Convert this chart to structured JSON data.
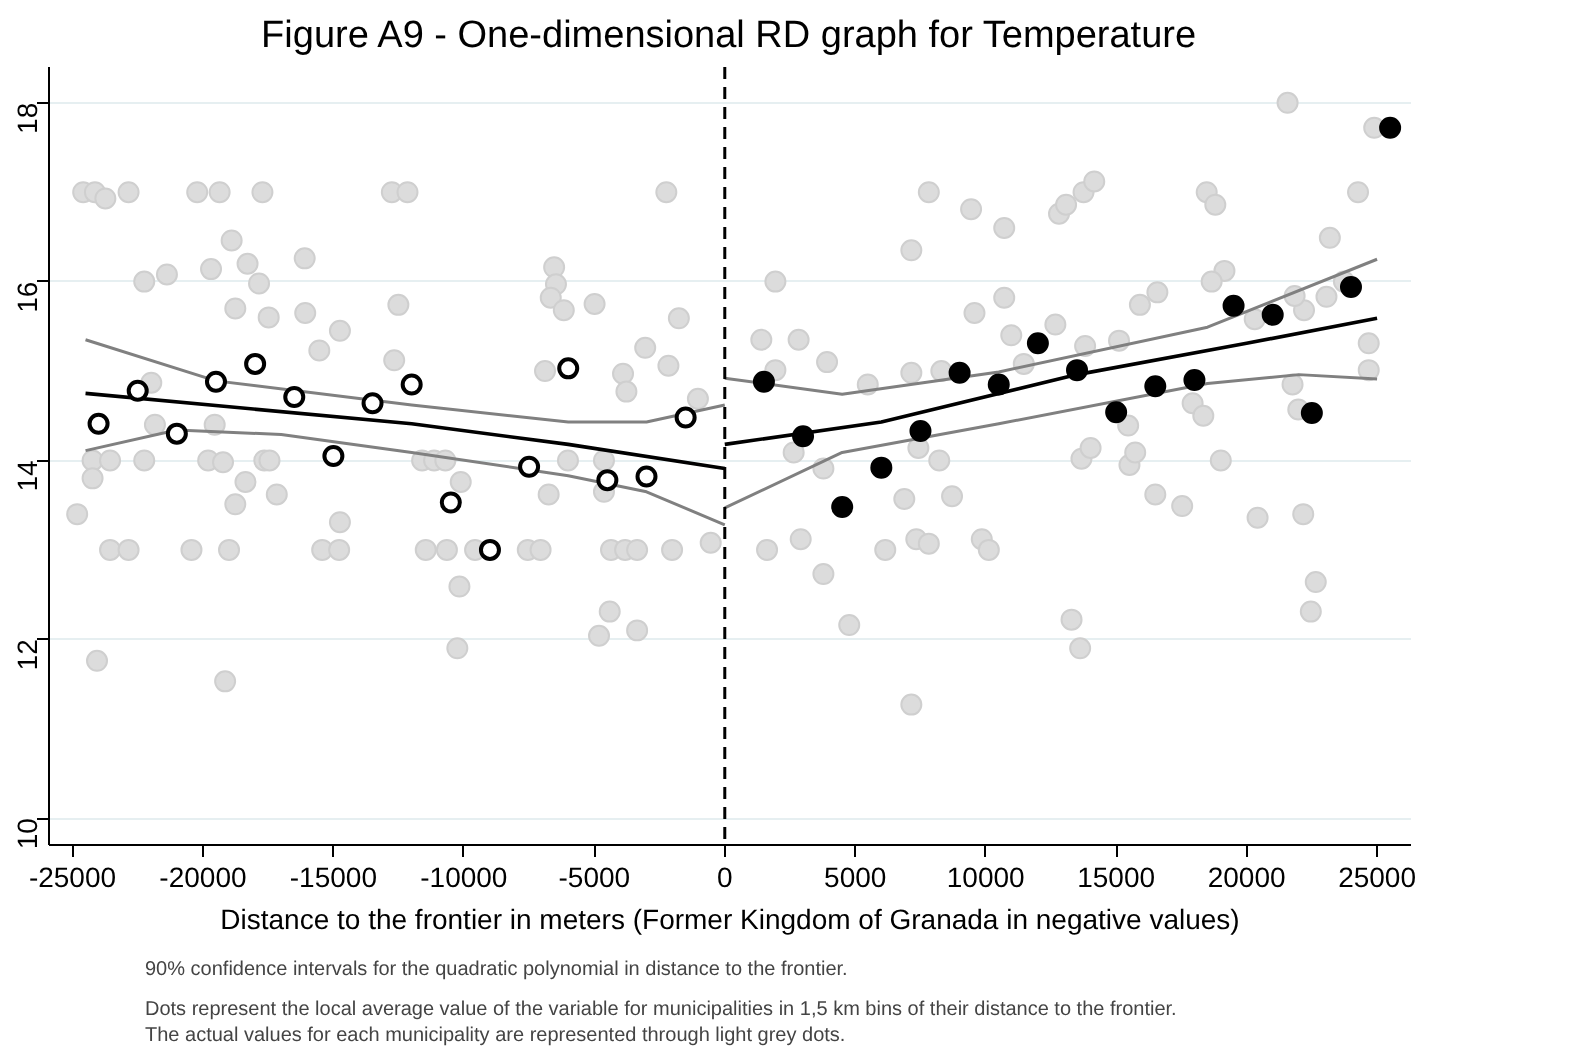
{
  "chart_data": {
    "type": "scatter",
    "title": "Figure A9 - One-dimensional RD graph for Temperature",
    "xlabel": "Distance to the frontier in meters (Former Kingdom of Granada in negative values)",
    "annotations": [
      "90% confidence intervals for the quadratic polynomial in distance to the frontier.",
      "Dots represent the local average value of the variable for municipalities in 1,5 km bins of their distance to the frontier.",
      "The actual values for each municipality are represented through light grey dots."
    ],
    "xlim": [
      -25900,
      26300
    ],
    "ylim": [
      9.7,
      18.4
    ],
    "xticks": [
      -25000,
      -20000,
      -15000,
      -10000,
      -5000,
      0,
      5000,
      10000,
      15000,
      20000,
      25000
    ],
    "yticks": [
      10,
      12,
      14,
      16,
      18
    ],
    "grid": "y",
    "marker": "circle",
    "ref_lines": [
      {
        "axis": "x",
        "value": 0,
        "color": "#000000",
        "line_style": "dashed"
      }
    ],
    "series": [
      {
        "color": "#dcdcdc",
        "x": [
          -24590,
          -24140,
          -23740,
          -22850,
          -20220,
          -19360,
          -17720,
          -12760,
          -12160,
          -2240,
          -18900,
          -18290,
          -19690,
          -22250,
          -21380,
          -17850,
          -16100,
          -6540,
          -6470,
          -18760,
          -17480,
          -16080,
          -14750,
          -12510,
          -6670,
          -6170,
          -4990,
          -1760,
          -15540,
          -12670,
          -3050,
          -2160,
          -1030,
          -6890,
          -3900,
          -3770,
          -24230,
          -23560,
          -22250,
          -19800,
          -19230,
          -17650,
          -17450,
          -11600,
          -11140,
          -10710,
          -6010,
          -4630,
          -24820,
          -24230,
          -18370,
          -18760,
          -17170,
          -10120,
          -6750,
          -4630,
          -14750,
          -23560,
          -22850,
          -20440,
          -19000,
          -15430,
          -14780,
          -11460,
          -10650,
          -9570,
          -7550,
          -7060,
          -4360,
          -3820,
          -3360,
          -2020,
          -540,
          -10170,
          -4410,
          -4820,
          -3360,
          -10250,
          -24060,
          -19150,
          -21980,
          -21840,
          -19550,
          21570,
          24890,
          7820,
          9440,
          10710,
          12810,
          13080,
          13750,
          14160,
          18470,
          18800,
          24270,
          7150,
          23190,
          1940,
          19150,
          18660,
          23730,
          10710,
          9570,
          12670,
          15910,
          16580,
          22200,
          23060,
          24680,
          24680,
          1400,
          2830,
          1940,
          3920,
          7150,
          8300,
          10980,
          13810,
          15110,
          20310,
          21840,
          5480,
          11460,
          8220,
          13670,
          15510,
          19010,
          2640,
          3780,
          7420,
          14020,
          15730,
          15460,
          17930,
          18340,
          21760,
          21980,
          6880,
          8710,
          16500,
          17530,
          20420,
          22170,
          1620,
          2910,
          6150,
          7340,
          7820,
          9850,
          10120,
          3780,
          4770,
          13290,
          13620,
          22650,
          22460,
          7150
        ],
        "values": [
          17.0,
          17.0,
          16.93,
          17.0,
          17.0,
          17.0,
          17.0,
          17.0,
          17.0,
          17.0,
          16.46,
          16.2,
          16.14,
          16.0,
          16.08,
          15.98,
          16.26,
          16.16,
          15.97,
          15.7,
          15.6,
          15.65,
          15.45,
          15.74,
          15.82,
          15.68,
          15.75,
          15.59,
          15.23,
          15.12,
          15.26,
          15.06,
          14.69,
          15.0,
          14.97,
          14.77,
          14.0,
          14.0,
          14.0,
          14.0,
          13.98,
          14.0,
          14.0,
          14.0,
          14.0,
          14.0,
          14.0,
          14.0,
          13.4,
          13.8,
          13.76,
          13.51,
          13.62,
          13.76,
          13.62,
          13.65,
          13.31,
          13.0,
          13.0,
          13.0,
          13.0,
          13.0,
          13.0,
          13.0,
          13.0,
          13.0,
          13.0,
          13.0,
          13.0,
          13.0,
          13.0,
          13.0,
          13.08,
          12.59,
          12.31,
          12.04,
          12.1,
          11.9,
          11.76,
          11.53,
          14.87,
          14.4,
          14.4,
          18.0,
          17.72,
          17.0,
          16.81,
          16.6,
          16.76,
          16.86,
          17.0,
          17.12,
          17.0,
          16.86,
          17.0,
          16.35,
          16.49,
          16.0,
          16.12,
          16.0,
          16.0,
          15.82,
          15.65,
          15.52,
          15.74,
          15.88,
          15.68,
          15.83,
          15.31,
          15.01,
          15.35,
          15.35,
          15.01,
          15.1,
          14.98,
          15.0,
          15.4,
          15.28,
          15.34,
          15.58,
          15.84,
          14.85,
          15.08,
          14.0,
          14.02,
          13.95,
          14.0,
          14.09,
          13.91,
          14.14,
          14.14,
          14.09,
          14.39,
          14.64,
          14.5,
          14.85,
          14.57,
          13.57,
          13.6,
          13.62,
          13.49,
          13.36,
          13.4,
          13.0,
          13.12,
          13.0,
          13.12,
          13.07,
          13.12,
          13.0,
          12.73,
          12.16,
          12.22,
          11.9,
          12.64,
          12.31,
          11.27
        ]
      },
      {
        "type": "line",
        "marker": "none",
        "color": "#808080",
        "x": [
          -24500,
          -19500,
          -12000,
          -6000,
          -3000,
          0
        ],
        "values": [
          15.35,
          14.89,
          14.62,
          14.43,
          14.43,
          14.62
        ]
      },
      {
        "type": "line",
        "marker": "none",
        "color": "#808080",
        "x": [
          -24500,
          -21000,
          -17000,
          -12000,
          -6000,
          -3000,
          0
        ],
        "values": [
          14.11,
          14.34,
          14.29,
          14.09,
          13.83,
          13.65,
          13.28
        ]
      },
      {
        "type": "line",
        "marker": "none",
        "color": "#000000",
        "x": [
          -24500,
          -12000,
          -6000,
          0
        ],
        "values": [
          14.75,
          14.41,
          14.18,
          13.91
        ]
      },
      {
        "type": "line",
        "marker": "none",
        "color": "#808080",
        "x": [
          0,
          4500,
          10500,
          18500,
          25000
        ],
        "values": [
          14.92,
          14.74,
          14.99,
          15.49,
          16.25
        ]
      },
      {
        "type": "line",
        "marker": "none",
        "color": "#808080",
        "x": [
          0,
          4500,
          10500,
          18500,
          22000,
          25000
        ],
        "values": [
          13.47,
          14.09,
          14.41,
          14.86,
          14.96,
          14.91
        ]
      },
      {
        "type": "line",
        "marker": "none",
        "color": "#000000",
        "x": [
          0,
          6000,
          13500,
          20000,
          25000
        ],
        "values": [
          14.18,
          14.43,
          14.96,
          15.31,
          15.59
        ]
      },
      {
        "color": "#ffffff",
        "x": [
          -24000,
          -22500,
          -21000,
          -19500,
          -18000,
          -16500,
          -15000,
          -13500,
          -12000,
          -10500,
          -9000,
          -7500,
          -6000,
          -4500,
          -3000,
          -1500
        ],
        "values": [
          14.41,
          14.78,
          14.3,
          14.88,
          15.08,
          14.71,
          14.05,
          14.64,
          14.85,
          13.53,
          13.0,
          13.93,
          15.03,
          13.78,
          13.82,
          14.48
        ]
      },
      {
        "color": "#000000",
        "x": [
          1500,
          3000,
          4500,
          6000,
          7500,
          9000,
          10500,
          12000,
          13500,
          15000,
          16500,
          18000,
          19500,
          21000,
          22500,
          24000,
          25500
        ],
        "values": [
          14.88,
          14.27,
          13.48,
          13.92,
          14.33,
          14.98,
          14.85,
          15.31,
          15.01,
          14.54,
          14.83,
          14.9,
          15.73,
          15.63,
          14.53,
          15.94,
          17.72
        ]
      }
    ]
  }
}
